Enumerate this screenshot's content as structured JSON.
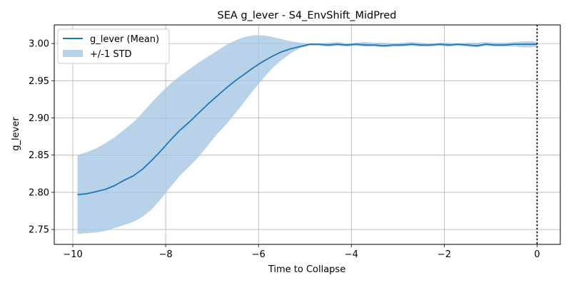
{
  "chart_data": {
    "type": "line",
    "title": "SEA g_lever - S4_EnvShift_MidPred",
    "xlabel": "Time to Collapse",
    "ylabel": "g_lever",
    "xlim": [
      -10.4,
      0.5
    ],
    "ylim": [
      2.73,
      3.025
    ],
    "xticks": [
      -10,
      -8,
      -6,
      -4,
      -2,
      0
    ],
    "xtick_labels": [
      "−10",
      "−8",
      "−6",
      "−4",
      "−2",
      "0"
    ],
    "yticks": [
      2.75,
      2.8,
      2.85,
      2.9,
      2.95,
      3.0
    ],
    "ytick_labels": [
      "2.75",
      "2.80",
      "2.85",
      "2.90",
      "2.95",
      "3.00"
    ],
    "grid": true,
    "legend_position": "top-left",
    "collapse_marker": {
      "x": 0,
      "style": "dotted",
      "color": "#000000"
    },
    "colors": {
      "mean": "#1f77b4",
      "band": "#a6c8e4"
    },
    "series": [
      {
        "name": "g_lever (Mean)",
        "x": [
          -9.9,
          -9.7,
          -9.5,
          -9.3,
          -9.1,
          -8.9,
          -8.7,
          -8.5,
          -8.3,
          -8.1,
          -7.9,
          -7.7,
          -7.5,
          -7.3,
          -7.1,
          -6.9,
          -6.7,
          -6.5,
          -6.3,
          -6.1,
          -5.9,
          -5.7,
          -5.5,
          -5.3,
          -5.1,
          -4.9,
          -4.7,
          -4.5,
          -4.3,
          -4.1,
          -3.9,
          -3.7,
          -3.5,
          -3.3,
          -3.1,
          -2.9,
          -2.7,
          -2.5,
          -2.3,
          -2.1,
          -1.9,
          -1.7,
          -1.5,
          -1.3,
          -1.1,
          -0.9,
          -0.7,
          -0.5,
          -0.3,
          -0.1,
          0.0
        ],
        "y": [
          2.797,
          2.798,
          2.801,
          2.804,
          2.809,
          2.816,
          2.822,
          2.831,
          2.843,
          2.856,
          2.87,
          2.883,
          2.894,
          2.906,
          2.918,
          2.929,
          2.94,
          2.95,
          2.959,
          2.968,
          2.976,
          2.983,
          2.989,
          2.993,
          2.996,
          2.999,
          2.999,
          2.998,
          2.999,
          2.998,
          2.999,
          2.998,
          2.998,
          2.997,
          2.998,
          2.998,
          2.999,
          2.998,
          2.998,
          2.999,
          2.998,
          2.999,
          2.998,
          2.997,
          2.999,
          2.998,
          2.998,
          2.999,
          2.999,
          2.999,
          2.999
        ]
      },
      {
        "name": "+/-1 STD",
        "x": [
          -9.9,
          -9.7,
          -9.5,
          -9.3,
          -9.1,
          -8.9,
          -8.7,
          -8.5,
          -8.3,
          -8.1,
          -7.9,
          -7.7,
          -7.5,
          -7.3,
          -7.1,
          -6.9,
          -6.7,
          -6.5,
          -6.3,
          -6.1,
          -5.9,
          -5.7,
          -5.5,
          -5.3,
          -5.1,
          -4.9,
          -4.7,
          -4.5,
          -4.3,
          -4.1,
          -3.9,
          -3.7,
          -3.5,
          -3.3,
          -3.1,
          -2.9,
          -2.7,
          -2.5,
          -2.3,
          -2.1,
          -1.9,
          -1.7,
          -1.5,
          -1.3,
          -1.1,
          -0.9,
          -0.7,
          -0.5,
          -0.3,
          -0.1,
          0.0
        ],
        "upper": [
          2.85,
          2.854,
          2.859,
          2.866,
          2.874,
          2.884,
          2.894,
          2.907,
          2.921,
          2.934,
          2.946,
          2.956,
          2.965,
          2.974,
          2.982,
          2.99,
          2.998,
          3.004,
          3.009,
          3.011,
          3.011,
          3.009,
          3.006,
          3.003,
          3.001,
          3.0,
          3.0,
          3.001,
          3.002,
          3.0,
          3.001,
          3.002,
          3.001,
          3.001,
          3.0,
          3.001,
          3.002,
          3.001,
          3.0,
          3.001,
          3.001,
          3.0,
          3.001,
          3.001,
          3.002,
          3.001,
          3.001,
          3.002,
          3.003,
          3.003,
          3.002
        ],
        "lower": [
          2.744,
          2.745,
          2.746,
          2.748,
          2.752,
          2.756,
          2.76,
          2.767,
          2.777,
          2.791,
          2.807,
          2.822,
          2.834,
          2.847,
          2.862,
          2.878,
          2.891,
          2.906,
          2.922,
          2.938,
          2.953,
          2.967,
          2.978,
          2.987,
          2.994,
          2.997,
          2.997,
          2.996,
          2.997,
          2.996,
          2.997,
          2.996,
          2.996,
          2.995,
          2.996,
          2.996,
          2.997,
          2.996,
          2.996,
          2.997,
          2.996,
          2.997,
          2.996,
          2.995,
          2.997,
          2.996,
          2.996,
          2.996,
          2.995,
          2.995,
          2.996
        ]
      }
    ]
  }
}
